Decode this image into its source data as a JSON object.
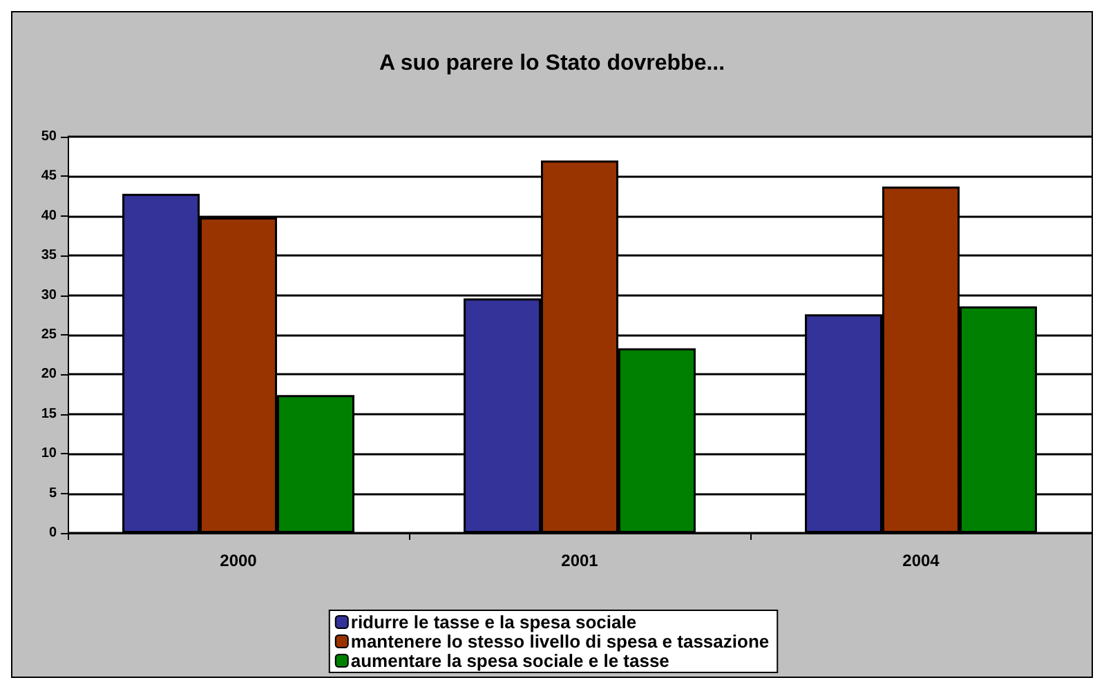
{
  "chart_data": {
    "type": "bar",
    "title": "A suo parere lo Stato dovrebbe...",
    "categories": [
      "2000",
      "2001",
      "2004"
    ],
    "series": [
      {
        "name": "ridurre le tasse e la spesa sociale",
        "color": "#333399",
        "values": [
          42.8,
          29.6,
          27.6
        ]
      },
      {
        "name": "mantenere lo stesso livello di spesa e tassazione",
        "color": "#993300",
        "values": [
          39.8,
          47.0,
          43.7
        ]
      },
      {
        "name": "aumentare la spesa sociale e le tasse",
        "color": "#008000",
        "values": [
          17.4,
          23.3,
          28.6
        ]
      }
    ],
    "ylim": [
      0,
      50
    ],
    "yticks": [
      0,
      5,
      10,
      15,
      20,
      25,
      30,
      35,
      40,
      45,
      50
    ],
    "grid": "y",
    "legend": "bottom"
  }
}
